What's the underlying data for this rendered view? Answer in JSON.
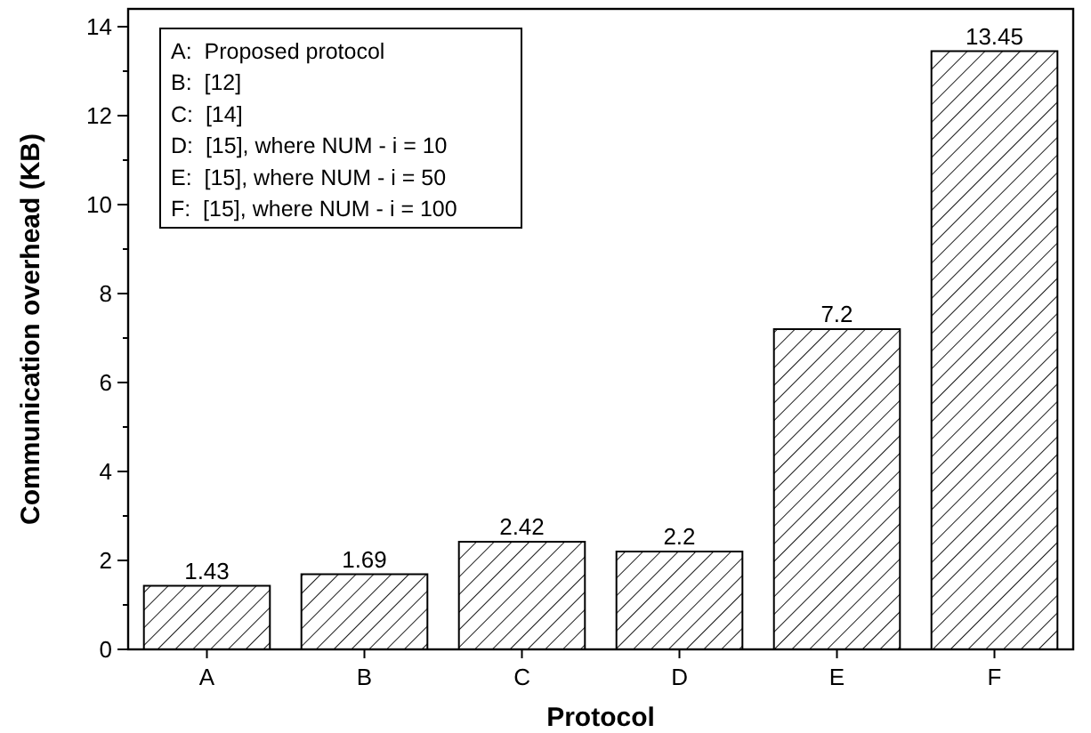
{
  "chart_data": {
    "type": "bar",
    "xlabel": "Protocol",
    "ylabel": "Communication overhead (KB)",
    "categories": [
      "A",
      "B",
      "C",
      "D",
      "E",
      "F"
    ],
    "values": [
      1.43,
      1.69,
      2.42,
      2.2,
      7.2,
      13.45
    ],
    "color": "#000000",
    "data_labels": true,
    "ylim": [
      0,
      14.4
    ],
    "yticks": [
      0,
      {
        "value": 1,
        "label": null
      },
      2,
      {
        "value": 3,
        "label": null
      },
      4,
      {
        "value": 5,
        "label": null
      },
      6,
      {
        "value": 7,
        "label": null
      },
      8,
      {
        "value": 9,
        "label": null
      },
      10,
      {
        "value": 11,
        "label": null
      },
      12,
      {
        "value": 13,
        "label": null
      },
      14
    ],
    "annotations": [
      "A:  Proposed protocol",
      "B:  [12]",
      "C:  [14]",
      "D:  [15], where NUM - i = 10",
      "E:  [15], where NUM - i = 50",
      "F:  [15], where NUM - i = 100"
    ],
    "grid": false
  }
}
